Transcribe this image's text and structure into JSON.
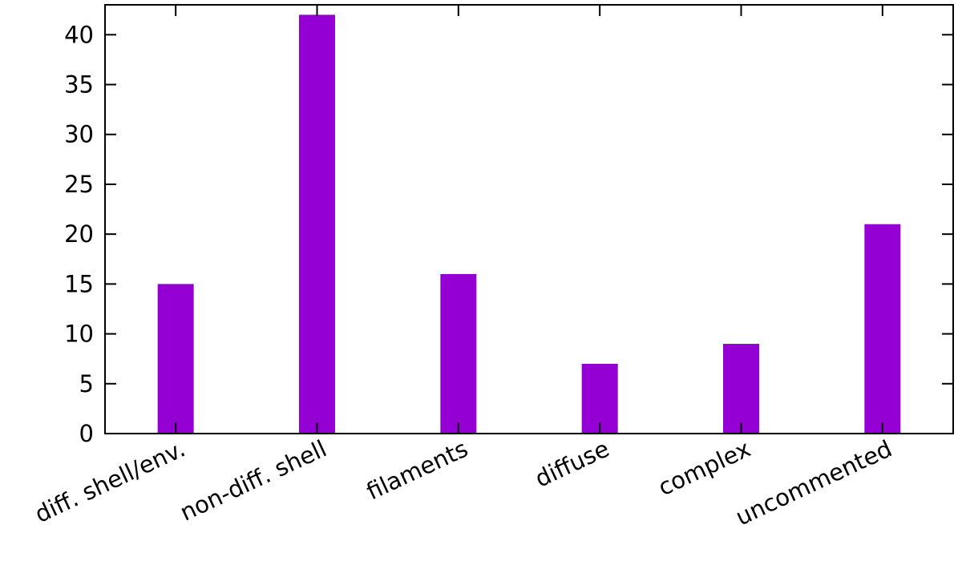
{
  "chart_data": {
    "type": "bar",
    "categories": [
      "diff. shell/env.",
      "non-diff. shell",
      "filaments",
      "diffuse",
      "complex",
      "uncommented"
    ],
    "values": [
      15,
      42,
      16,
      7,
      9,
      21
    ],
    "yticks": [
      "0",
      "5",
      "10",
      "15",
      "20",
      "25",
      "30",
      "35",
      "40"
    ],
    "ylim": [
      0,
      43
    ],
    "xlim": [
      -0.5,
      5.5
    ],
    "grid": false,
    "legend": "none",
    "title": "",
    "xlabel": "",
    "ylabel": "",
    "bar_color": "#9400d3"
  }
}
